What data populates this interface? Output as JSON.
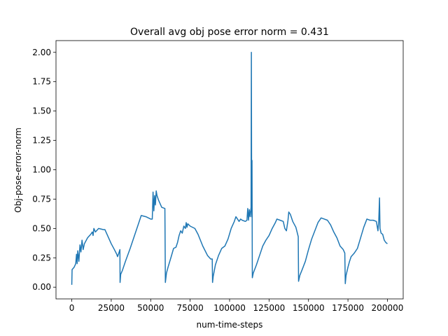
{
  "chart_data": {
    "type": "line",
    "title": "Overall avg obj pose error norm = 0.431",
    "xlabel": "num-time-steps",
    "ylabel": "Obj-pose-error-norm",
    "xlim": [
      -10000,
      210000
    ],
    "ylim": [
      -0.1,
      2.1
    ],
    "xticks": [
      0,
      25000,
      50000,
      75000,
      100000,
      125000,
      150000,
      175000,
      200000
    ],
    "yticks": [
      "0.00",
      "0.25",
      "0.50",
      "0.75",
      "1.00",
      "1.25",
      "1.50",
      "1.75",
      "2.00"
    ],
    "grid": false,
    "legend": "none",
    "series": [
      {
        "color": "#1f77b4",
        "points": [
          [
            0,
            0.02
          ],
          [
            200,
            0.15
          ],
          [
            1500,
            0.17
          ],
          [
            2500,
            0.2
          ],
          [
            3000,
            0.28
          ],
          [
            3400,
            0.2
          ],
          [
            3800,
            0.31
          ],
          [
            4500,
            0.22
          ],
          [
            5200,
            0.36
          ],
          [
            5800,
            0.3
          ],
          [
            6500,
            0.4
          ],
          [
            7200,
            0.32
          ],
          [
            8000,
            0.37
          ],
          [
            10000,
            0.42
          ],
          [
            12000,
            0.45
          ],
          [
            13000,
            0.47
          ],
          [
            13500,
            0.44
          ],
          [
            14000,
            0.5
          ],
          [
            15000,
            0.47
          ],
          [
            17000,
            0.5
          ],
          [
            20000,
            0.49
          ],
          [
            21000,
            0.49
          ],
          [
            22000,
            0.46
          ],
          [
            25000,
            0.37
          ],
          [
            27000,
            0.32
          ],
          [
            28500,
            0.28
          ],
          [
            29000,
            0.26
          ],
          [
            29800,
            0.29
          ],
          [
            30500,
            0.32
          ],
          [
            30600,
            0.04
          ],
          [
            31000,
            0.11
          ],
          [
            32000,
            0.14
          ],
          [
            34000,
            0.22
          ],
          [
            37000,
            0.33
          ],
          [
            40000,
            0.45
          ],
          [
            42000,
            0.53
          ],
          [
            44000,
            0.61
          ],
          [
            47000,
            0.6
          ],
          [
            50000,
            0.58
          ],
          [
            51000,
            0.58
          ],
          [
            51500,
            0.81
          ],
          [
            52000,
            0.65
          ],
          [
            52500,
            0.78
          ],
          [
            53000,
            0.7
          ],
          [
            53500,
            0.82
          ],
          [
            54000,
            0.78
          ],
          [
            55000,
            0.74
          ],
          [
            57000,
            0.68
          ],
          [
            59000,
            0.67
          ],
          [
            59300,
            0.04
          ],
          [
            60000,
            0.12
          ],
          [
            61000,
            0.17
          ],
          [
            63000,
            0.26
          ],
          [
            64500,
            0.33
          ],
          [
            66000,
            0.34
          ],
          [
            67000,
            0.38
          ],
          [
            68000,
            0.44
          ],
          [
            69000,
            0.48
          ],
          [
            70000,
            0.46
          ],
          [
            71000,
            0.52
          ],
          [
            72000,
            0.5
          ],
          [
            72500,
            0.55
          ],
          [
            73000,
            0.51
          ],
          [
            73500,
            0.54
          ],
          [
            75000,
            0.52
          ],
          [
            78000,
            0.5
          ],
          [
            80000,
            0.45
          ],
          [
            83000,
            0.35
          ],
          [
            86000,
            0.27
          ],
          [
            88000,
            0.24
          ],
          [
            89000,
            0.24
          ],
          [
            89200,
            0.04
          ],
          [
            89600,
            0.09
          ],
          [
            91000,
            0.19
          ],
          [
            93000,
            0.27
          ],
          [
            95000,
            0.33
          ],
          [
            97000,
            0.35
          ],
          [
            99000,
            0.41
          ],
          [
            101000,
            0.5
          ],
          [
            103000,
            0.56
          ],
          [
            104000,
            0.6
          ],
          [
            105000,
            0.58
          ],
          [
            106000,
            0.56
          ],
          [
            107000,
            0.58
          ],
          [
            108000,
            0.57
          ],
          [
            110000,
            0.56
          ],
          [
            111000,
            0.57
          ],
          [
            111500,
            0.67
          ],
          [
            112000,
            0.57
          ],
          [
            112500,
            0.66
          ],
          [
            113000,
            0.6
          ],
          [
            113600,
            0.68
          ],
          [
            113800,
            2.0
          ],
          [
            114000,
            0.6
          ],
          [
            114200,
            1.08
          ],
          [
            114400,
            0.08
          ],
          [
            115000,
            0.12
          ],
          [
            117000,
            0.19
          ],
          [
            119000,
            0.27
          ],
          [
            121000,
            0.35
          ],
          [
            123000,
            0.4
          ],
          [
            125000,
            0.44
          ],
          [
            127000,
            0.5
          ],
          [
            129000,
            0.55
          ],
          [
            130000,
            0.58
          ],
          [
            132000,
            0.57
          ],
          [
            134000,
            0.56
          ],
          [
            135000,
            0.5
          ],
          [
            136000,
            0.48
          ],
          [
            137000,
            0.57
          ],
          [
            137500,
            0.64
          ],
          [
            138500,
            0.62
          ],
          [
            140000,
            0.56
          ],
          [
            142000,
            0.51
          ],
          [
            143500,
            0.43
          ],
          [
            143700,
            0.05
          ],
          [
            144500,
            0.1
          ],
          [
            146000,
            0.15
          ],
          [
            148000,
            0.22
          ],
          [
            150000,
            0.32
          ],
          [
            152000,
            0.41
          ],
          [
            154000,
            0.48
          ],
          [
            156000,
            0.55
          ],
          [
            158000,
            0.59
          ],
          [
            160000,
            0.58
          ],
          [
            162000,
            0.57
          ],
          [
            164000,
            0.53
          ],
          [
            166000,
            0.47
          ],
          [
            168000,
            0.42
          ],
          [
            170000,
            0.35
          ],
          [
            172000,
            0.32
          ],
          [
            173000,
            0.29
          ],
          [
            173300,
            0.03
          ],
          [
            173800,
            0.1
          ],
          [
            175000,
            0.17
          ],
          [
            176000,
            0.22
          ],
          [
            177000,
            0.26
          ],
          [
            179000,
            0.29
          ],
          [
            181000,
            0.33
          ],
          [
            183000,
            0.42
          ],
          [
            185000,
            0.51
          ],
          [
            187000,
            0.58
          ],
          [
            189000,
            0.57
          ],
          [
            191000,
            0.57
          ],
          [
            193000,
            0.56
          ],
          [
            194000,
            0.48
          ],
          [
            194500,
            0.56
          ],
          [
            195000,
            0.76
          ],
          [
            195300,
            0.5
          ],
          [
            196000,
            0.46
          ],
          [
            197000,
            0.45
          ],
          [
            198000,
            0.4
          ],
          [
            199000,
            0.38
          ],
          [
            200000,
            0.37
          ]
        ]
      }
    ]
  }
}
